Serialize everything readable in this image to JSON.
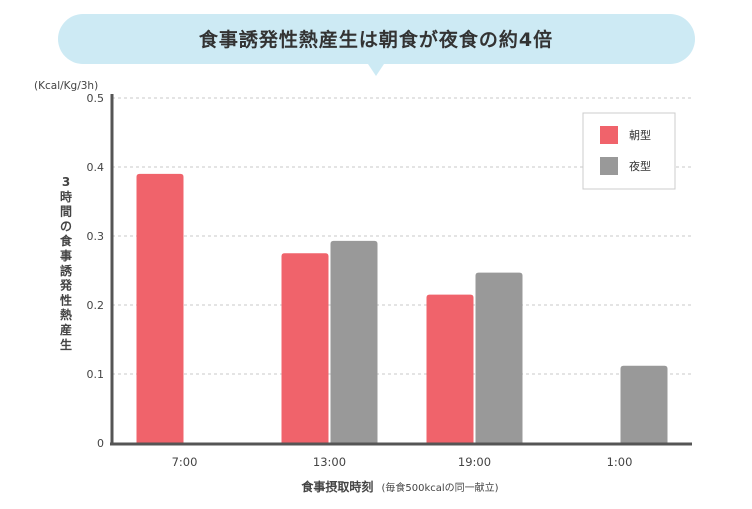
{
  "chart_data": {
    "type": "bar",
    "title": "食事誘発性熱産生は朝食が夜食の約4倍",
    "unit": "(Kcal/Kg/3h)",
    "ylabel": "3時間の食事誘発性熱産生",
    "xlabel": "食事摂取時刻",
    "xlabel_note": "(毎食500kcalの同一献立)",
    "categories": [
      "7:00",
      "13:00",
      "19:00",
      "1:00"
    ],
    "series": [
      {
        "name": "朝型",
        "color": "#f0636b",
        "values": [
          0.39,
          0.275,
          0.215,
          null
        ]
      },
      {
        "name": "夜型",
        "color": "#999999",
        "values": [
          null,
          0.293,
          0.247,
          0.112
        ]
      }
    ],
    "ylim": [
      0,
      0.5
    ],
    "yticks": [
      "0",
      "0.1",
      "0.2",
      "0.3",
      "0.4",
      "0.5"
    ],
    "grid": true,
    "legend_position": "top-right"
  },
  "colors": {
    "title_bubble": "#cdeaf4",
    "axis": "#555555",
    "grid": "#c8c8c8"
  }
}
